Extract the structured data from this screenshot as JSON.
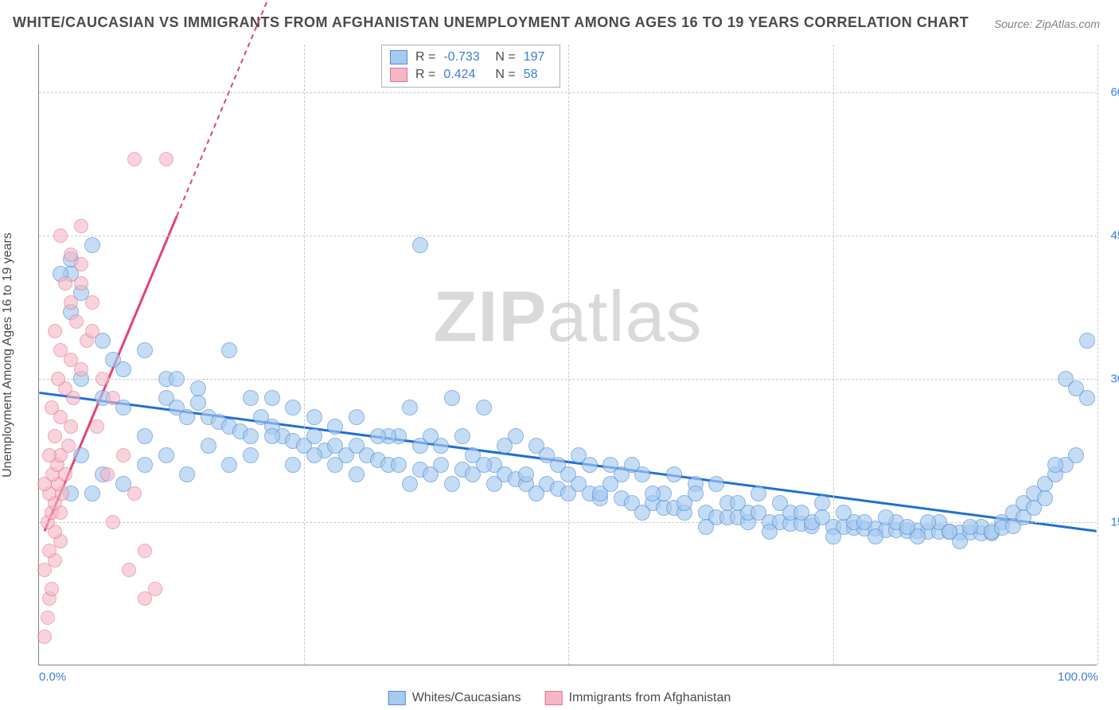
{
  "title": "WHITE/CAUCASIAN VS IMMIGRANTS FROM AFGHANISTAN UNEMPLOYMENT AMONG AGES 16 TO 19 YEARS CORRELATION CHART",
  "source": "Source: ZipAtlas.com",
  "watermark_bold": "ZIP",
  "watermark_light": "atlas",
  "y_axis_title": "Unemployment Among Ages 16 to 19 years",
  "chart": {
    "type": "scatter",
    "xlim": [
      0,
      100
    ],
    "ylim": [
      0,
      65
    ],
    "x_ticks": [
      0,
      25,
      50,
      75,
      100
    ],
    "x_tick_labels": {
      "0": "0.0%",
      "100": "100.0%"
    },
    "y_ticks": [
      15,
      30,
      45,
      60
    ],
    "y_tick_labels": {
      "15": "15.0%",
      "30": "30.0%",
      "45": "45.0%",
      "60": "60.0%"
    },
    "background_color": "#ffffff",
    "grid_color": "#c8c8c8",
    "axis_color": "#808080",
    "tick_label_color": "#3b7dd8",
    "tick_label_fontsize": 15,
    "series": [
      {
        "name": "Whites/Caucasians",
        "marker_color_fill": "#a7caf0",
        "marker_color_stroke": "#4f8ed6",
        "marker_opacity": 0.65,
        "marker_radius": 10,
        "trend": {
          "x1": 0,
          "y1": 28.5,
          "x2": 100,
          "y2": 14.0,
          "color": "#1f6fd4",
          "width": 3,
          "dash": "none"
        },
        "stats": {
          "R": "-0.733",
          "N": "197"
        },
        "points": [
          [
            3,
            42.5
          ],
          [
            3,
            41
          ],
          [
            4,
            39
          ],
          [
            3,
            37
          ],
          [
            5,
            44
          ],
          [
            6,
            34
          ],
          [
            7,
            32
          ],
          [
            8,
            31
          ],
          [
            10,
            33
          ],
          [
            12,
            30
          ],
          [
            12,
            28
          ],
          [
            13,
            27
          ],
          [
            14,
            26
          ],
          [
            15,
            27.5
          ],
          [
            16,
            26
          ],
          [
            17,
            25.5
          ],
          [
            18,
            25
          ],
          [
            19,
            24.5
          ],
          [
            20,
            28
          ],
          [
            21,
            26
          ],
          [
            22,
            25
          ],
          [
            23,
            24
          ],
          [
            24,
            23.5
          ],
          [
            25,
            23
          ],
          [
            26,
            26
          ],
          [
            27,
            22.5
          ],
          [
            28,
            23
          ],
          [
            29,
            22
          ],
          [
            30,
            23
          ],
          [
            31,
            22
          ],
          [
            32,
            21.5
          ],
          [
            33,
            21
          ],
          [
            34,
            24
          ],
          [
            35,
            27
          ],
          [
            36,
            20.5
          ],
          [
            37,
            20
          ],
          [
            38,
            23
          ],
          [
            39,
            28
          ],
          [
            40,
            20.5
          ],
          [
            41,
            20
          ],
          [
            42,
            27
          ],
          [
            43,
            21
          ],
          [
            44,
            20
          ],
          [
            45,
            19.5
          ],
          [
            46,
            19
          ],
          [
            47,
            23
          ],
          [
            48,
            19
          ],
          [
            49,
            18.5
          ],
          [
            50,
            18
          ],
          [
            51,
            22
          ],
          [
            52,
            18
          ],
          [
            53,
            17.5
          ],
          [
            54,
            21
          ],
          [
            55,
            17.5
          ],
          [
            56,
            17
          ],
          [
            57,
            20
          ],
          [
            58,
            17
          ],
          [
            59,
            16.5
          ],
          [
            60,
            16.5
          ],
          [
            61,
            16
          ],
          [
            62,
            19
          ],
          [
            63,
            16
          ],
          [
            64,
            15.5
          ],
          [
            65,
            15.5
          ],
          [
            66,
            15.5
          ],
          [
            67,
            15
          ],
          [
            68,
            18
          ],
          [
            69,
            15
          ],
          [
            70,
            15
          ],
          [
            71,
            14.8
          ],
          [
            72,
            14.8
          ],
          [
            73,
            14.6
          ],
          [
            74,
            17
          ],
          [
            75,
            14.5
          ],
          [
            76,
            14.5
          ],
          [
            77,
            14.4
          ],
          [
            78,
            14.3
          ],
          [
            79,
            14.3
          ],
          [
            80,
            14.2
          ],
          [
            81,
            14.2
          ],
          [
            82,
            14.1
          ],
          [
            83,
            14.1
          ],
          [
            84,
            14
          ],
          [
            85,
            14
          ],
          [
            86,
            14
          ],
          [
            87,
            13.9
          ],
          [
            88,
            13.9
          ],
          [
            89,
            13.8
          ],
          [
            90,
            13.8
          ],
          [
            91,
            15
          ],
          [
            92,
            16
          ],
          [
            93,
            17
          ],
          [
            94,
            18
          ],
          [
            95,
            19
          ],
          [
            96,
            20
          ],
          [
            97,
            21
          ],
          [
            98,
            22
          ],
          [
            97,
            30
          ],
          [
            98,
            29
          ],
          [
            99,
            34
          ],
          [
            4,
            30
          ],
          [
            6,
            28
          ],
          [
            8,
            27
          ],
          [
            10,
            24
          ],
          [
            13,
            30
          ],
          [
            15,
            29
          ],
          [
            18,
            33
          ],
          [
            20,
            24
          ],
          [
            22,
            28
          ],
          [
            24,
            27
          ],
          [
            26,
            22
          ],
          [
            28,
            25
          ],
          [
            30,
            20
          ],
          [
            33,
            24
          ],
          [
            35,
            19
          ],
          [
            37,
            24
          ],
          [
            39,
            19
          ],
          [
            41,
            22
          ],
          [
            43,
            19
          ],
          [
            45,
            24
          ],
          [
            47,
            18
          ],
          [
            49,
            21
          ],
          [
            51,
            19
          ],
          [
            53,
            18
          ],
          [
            55,
            20
          ],
          [
            57,
            16
          ],
          [
            59,
            18
          ],
          [
            61,
            17
          ],
          [
            63,
            14.5
          ],
          [
            65,
            17
          ],
          [
            67,
            16
          ],
          [
            69,
            14
          ],
          [
            71,
            16
          ],
          [
            73,
            15
          ],
          [
            75,
            13.5
          ],
          [
            77,
            15
          ],
          [
            79,
            13.5
          ],
          [
            81,
            15
          ],
          [
            83,
            13.5
          ],
          [
            85,
            15
          ],
          [
            87,
            13
          ],
          [
            89,
            14.5
          ],
          [
            3,
            18
          ],
          [
            5,
            18
          ],
          [
            36,
            44
          ],
          [
            2,
            41
          ],
          [
            4,
            22
          ],
          [
            6,
            20
          ],
          [
            8,
            19
          ],
          [
            10,
            21
          ],
          [
            12,
            22
          ],
          [
            14,
            20
          ],
          [
            16,
            23
          ],
          [
            18,
            21
          ],
          [
            20,
            22
          ],
          [
            22,
            24
          ],
          [
            24,
            21
          ],
          [
            26,
            24
          ],
          [
            28,
            21
          ],
          [
            30,
            26
          ],
          [
            32,
            24
          ],
          [
            34,
            21
          ],
          [
            36,
            23
          ],
          [
            38,
            21
          ],
          [
            40,
            24
          ],
          [
            42,
            21
          ],
          [
            44,
            23
          ],
          [
            46,
            20
          ],
          [
            48,
            22
          ],
          [
            50,
            20
          ],
          [
            52,
            21
          ],
          [
            54,
            19
          ],
          [
            56,
            21
          ],
          [
            58,
            18
          ],
          [
            60,
            20
          ],
          [
            62,
            18
          ],
          [
            64,
            19
          ],
          [
            66,
            17
          ],
          [
            68,
            16
          ],
          [
            70,
            17
          ],
          [
            72,
            16
          ],
          [
            74,
            15.5
          ],
          [
            76,
            16
          ],
          [
            78,
            15
          ],
          [
            80,
            15.5
          ],
          [
            82,
            14.5
          ],
          [
            84,
            15
          ],
          [
            86,
            14
          ],
          [
            88,
            14.5
          ],
          [
            90,
            14
          ],
          [
            91,
            14.4
          ],
          [
            92,
            14.6
          ],
          [
            93,
            15.5
          ],
          [
            94,
            16.5
          ],
          [
            95,
            17.5
          ],
          [
            96,
            21
          ],
          [
            99,
            28
          ]
        ]
      },
      {
        "name": "Immigrants from Afghanistan",
        "marker_color_fill": "#f5b7c6",
        "marker_color_stroke": "#e56f8f",
        "marker_opacity": 0.6,
        "marker_radius": 9,
        "trend": {
          "x1": 0.5,
          "y1": 14,
          "x2": 13,
          "y2": 47,
          "color": "#e2446f",
          "width": 3,
          "dash": "none",
          "ext_x2": 24,
          "ext_y2": 76,
          "ext_dash": "6,5"
        },
        "stats": {
          "R": "0.424",
          "N": "58"
        },
        "points": [
          [
            0.5,
            3
          ],
          [
            0.8,
            5
          ],
          [
            1,
            7
          ],
          [
            1.2,
            8
          ],
          [
            0.5,
            10
          ],
          [
            1.5,
            11
          ],
          [
            1,
            12
          ],
          [
            2,
            13
          ],
          [
            1.5,
            14
          ],
          [
            0.8,
            15
          ],
          [
            1.2,
            16
          ],
          [
            2,
            16
          ],
          [
            1.5,
            17
          ],
          [
            1,
            18
          ],
          [
            2.2,
            18
          ],
          [
            1.8,
            19
          ],
          [
            0.5,
            19
          ],
          [
            1.3,
            20
          ],
          [
            2.5,
            20
          ],
          [
            1.7,
            21
          ],
          [
            2,
            22
          ],
          [
            1,
            22
          ],
          [
            2.8,
            23
          ],
          [
            1.5,
            24
          ],
          [
            3,
            25
          ],
          [
            2,
            26
          ],
          [
            1.2,
            27
          ],
          [
            3.2,
            28
          ],
          [
            2.5,
            29
          ],
          [
            1.8,
            30
          ],
          [
            4,
            31
          ],
          [
            3,
            32
          ],
          [
            2,
            33
          ],
          [
            4.5,
            34
          ],
          [
            1.5,
            35
          ],
          [
            3.5,
            36
          ],
          [
            5,
            38
          ],
          [
            2.5,
            40
          ],
          [
            4,
            42
          ],
          [
            3,
            43
          ],
          [
            6,
            30
          ],
          [
            7,
            28
          ],
          [
            5.5,
            25
          ],
          [
            8,
            22
          ],
          [
            6.5,
            20
          ],
          [
            9,
            18
          ],
          [
            7,
            15
          ],
          [
            10,
            12
          ],
          [
            8.5,
            10
          ],
          [
            11,
            8
          ],
          [
            4,
            46
          ],
          [
            5,
            35
          ],
          [
            9,
            53
          ],
          [
            10,
            7
          ],
          [
            12,
            53
          ],
          [
            2,
            45
          ],
          [
            3,
            38
          ],
          [
            4,
            40
          ]
        ]
      }
    ]
  },
  "stats_labels": {
    "R": "R =",
    "N": "N ="
  },
  "bottom_legend": [
    {
      "label": "Whites/Caucasians",
      "fill": "#a7caf0",
      "stroke": "#4f8ed6"
    },
    {
      "label": "Immigrants from Afghanistan",
      "fill": "#f5b7c6",
      "stroke": "#e56f8f"
    }
  ]
}
